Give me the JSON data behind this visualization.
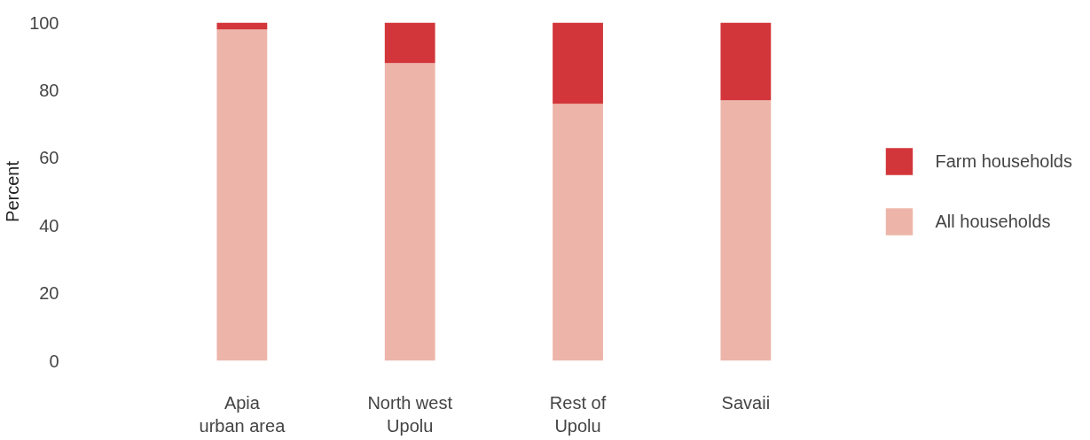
{
  "chart_data": {
    "type": "bar",
    "stacked": true,
    "ylabel": "Percent",
    "categories": [
      "Apia\nurban area",
      "North west\nUpolu",
      "Rest of\nUpolu",
      "Savaii"
    ],
    "series": [
      {
        "name": "All households",
        "color": "#edb5a9",
        "values": [
          98,
          88,
          76,
          77
        ]
      },
      {
        "name": "Farm households",
        "color": "#d2363a",
        "values": [
          2,
          12,
          24,
          23
        ]
      }
    ],
    "ylim": [
      0,
      100
    ],
    "yticks": [
      0,
      20,
      40,
      60,
      80,
      100
    ],
    "grid": false,
    "legend": "right"
  }
}
